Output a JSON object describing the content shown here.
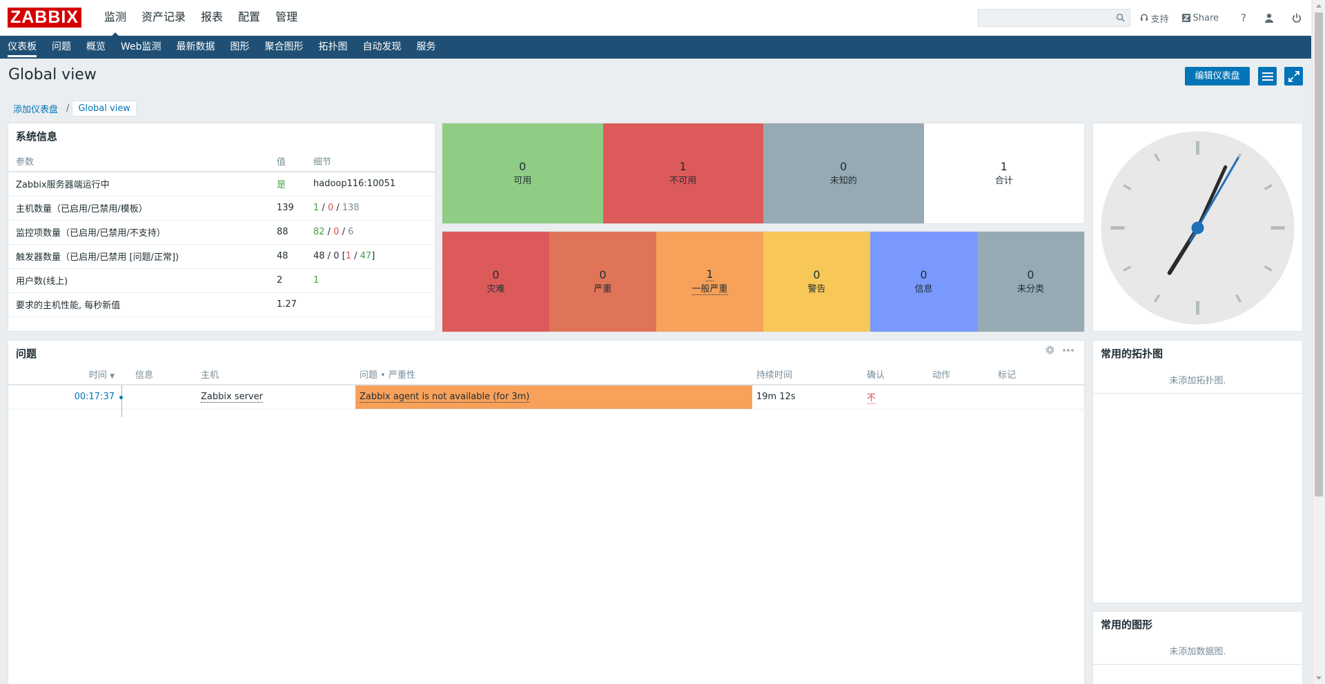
{
  "header": {
    "logo": "ZABBIX",
    "nav": [
      "监测",
      "资产记录",
      "报表",
      "配置",
      "管理"
    ],
    "search_placeholder": "",
    "support_label": "支持",
    "share_label": "Share",
    "help_label": "?"
  },
  "subnav": [
    "仪表板",
    "问题",
    "概览",
    "Web监测",
    "最新数据",
    "图形",
    "聚合图形",
    "拓扑图",
    "自动发现",
    "服务"
  ],
  "page": {
    "title": "Global view",
    "edit_button": "编辑仪表盘"
  },
  "breadcrumb": {
    "parent": "添加仪表盘",
    "sep": "/",
    "current": "Global view"
  },
  "sysinfo": {
    "title": "系统信息",
    "columns": [
      "参数",
      "值",
      "细节"
    ],
    "rows": [
      {
        "param": "Zabbix服务器端运行中",
        "value": "是",
        "detail_plain": "hadoop116:10051"
      },
      {
        "param": "主机数量（已启用/已禁用/模板）",
        "value": "139",
        "d1": "1",
        "d2": "0",
        "d3": "138"
      },
      {
        "param": "监控项数量（已启用/已禁用/不支持）",
        "value": "88",
        "d1": "82",
        "d2": "0",
        "d3": "6"
      },
      {
        "param": "触发器数量（已启用/已禁用 [问题/正常])",
        "value": "48",
        "d1": "48",
        "d2": "0",
        "d3": "1",
        "d4": "47"
      },
      {
        "param": "用户数(线上)",
        "value": "2",
        "d1": "1"
      },
      {
        "param": "要求的主机性能, 每秒新值",
        "value": "1.27"
      }
    ]
  },
  "host_availability": [
    {
      "count": "0",
      "label": "可用",
      "color": "#8fcd85"
    },
    {
      "count": "1",
      "label": "不可用",
      "color": "#dd5a5a"
    },
    {
      "count": "0",
      "label": "未知的",
      "color": "#97aab3"
    },
    {
      "count": "1",
      "label": "合计",
      "color": "#ffffff"
    }
  ],
  "problem_severity": [
    {
      "count": "0",
      "label": "灾难",
      "color": "#dd5a5a"
    },
    {
      "count": "0",
      "label": "严重",
      "color": "#e07458"
    },
    {
      "count": "1",
      "label": "一般严重",
      "color": "#f7a15a"
    },
    {
      "count": "0",
      "label": "警告",
      "color": "#f7c857"
    },
    {
      "count": "0",
      "label": "信息",
      "color": "#7999fe"
    },
    {
      "count": "0",
      "label": "未分类",
      "color": "#97aab3"
    }
  ],
  "problems": {
    "title": "问题",
    "columns": [
      "时间",
      "信息",
      "主机",
      "问题 • 严重性",
      "持续时间",
      "确认",
      "动作",
      "标记"
    ],
    "rows": [
      {
        "time": "00:17:37",
        "info": "",
        "host": "Zabbix server",
        "problem": "Zabbix agent is not available (for 3m)",
        "duration": "19m 12s",
        "ack": "不",
        "severity_color": "#f7a15a"
      }
    ]
  },
  "fav_maps": {
    "title": "常用的拓扑图",
    "empty": "未添加拓扑图."
  },
  "fav_graphs": {
    "title": "常用的图形",
    "empty": "未添加数据图."
  },
  "clock": {
    "hour": 7,
    "minute": 4,
    "second": 5
  }
}
